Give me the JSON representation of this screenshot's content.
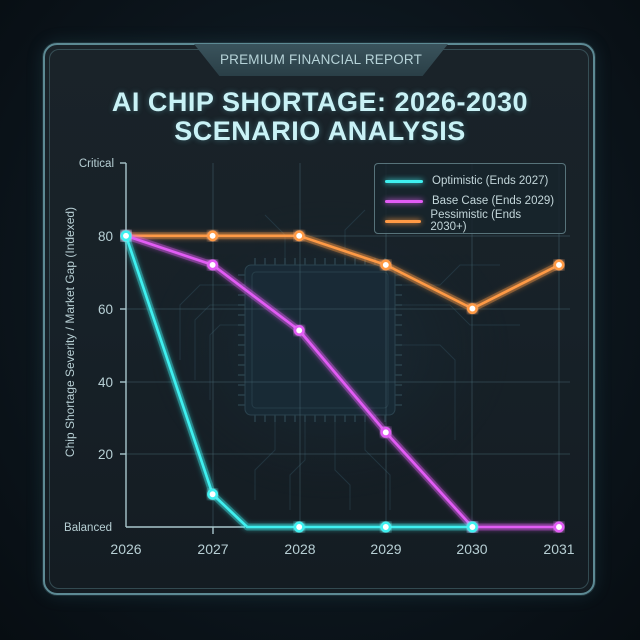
{
  "header": {
    "banner": "PREMIUM FINANCIAL REPORT",
    "title_line1": "AI CHIP SHORTAGE: 2026-2030",
    "title_line2": "SCENARIO ANALYSIS"
  },
  "legend": [
    {
      "label": "Optimistic (Ends 2027)",
      "color": "#3ff0f0"
    },
    {
      "label": "Base Case (Ends 2029)",
      "color": "#e25cf5"
    },
    {
      "label": "Pessimistic (Ends 2030+)",
      "color": "#ff9a45"
    }
  ],
  "axes": {
    "ylabel": "Chip Shortage Severity / Market Gap (Indexed)",
    "y_top_label": "Critical",
    "y_bottom_label": "Balanced",
    "y_ticks": [
      "80",
      "60",
      "40",
      "20"
    ],
    "x_ticks": [
      "2026",
      "2027",
      "2028",
      "2029",
      "2030",
      "2031"
    ]
  },
  "chart_data": {
    "type": "line",
    "title": "AI CHIP SHORTAGE: 2026-2030 SCENARIO ANALYSIS",
    "subtitle": "PREMIUM FINANCIAL REPORT",
    "xlabel": "",
    "ylabel": "Chip Shortage Severity / Market Gap (Indexed)",
    "x": [
      2026,
      2027,
      2028,
      2029,
      2030,
      2031
    ],
    "ylim": [
      0,
      100
    ],
    "y_ticks": [
      20,
      40,
      60,
      80
    ],
    "y_tick_labels_extra": {
      "0": "Balanced",
      "100": "Critical"
    },
    "grid": true,
    "legend_position": "upper right",
    "series": [
      {
        "name": "Optimistic (Ends 2027)",
        "color": "#3ff0f0",
        "points": [
          [
            2026,
            80
          ],
          [
            2027,
            9
          ],
          [
            2027.4,
            0
          ],
          [
            2028,
            0
          ],
          [
            2029,
            0
          ],
          [
            2030,
            0
          ]
        ]
      },
      {
        "name": "Base Case (Ends 2029)",
        "color": "#e25cf5",
        "points": [
          [
            2026,
            80
          ],
          [
            2027,
            72
          ],
          [
            2028,
            54
          ],
          [
            2029,
            26
          ],
          [
            2030,
            0
          ],
          [
            2031,
            0
          ]
        ]
      },
      {
        "name": "Pessimistic (Ends 2030+)",
        "color": "#ff9a45",
        "points": [
          [
            2026,
            80
          ],
          [
            2027,
            80
          ],
          [
            2028,
            80
          ],
          [
            2029,
            72
          ],
          [
            2030,
            60
          ],
          [
            2031,
            72
          ]
        ]
      }
    ]
  }
}
